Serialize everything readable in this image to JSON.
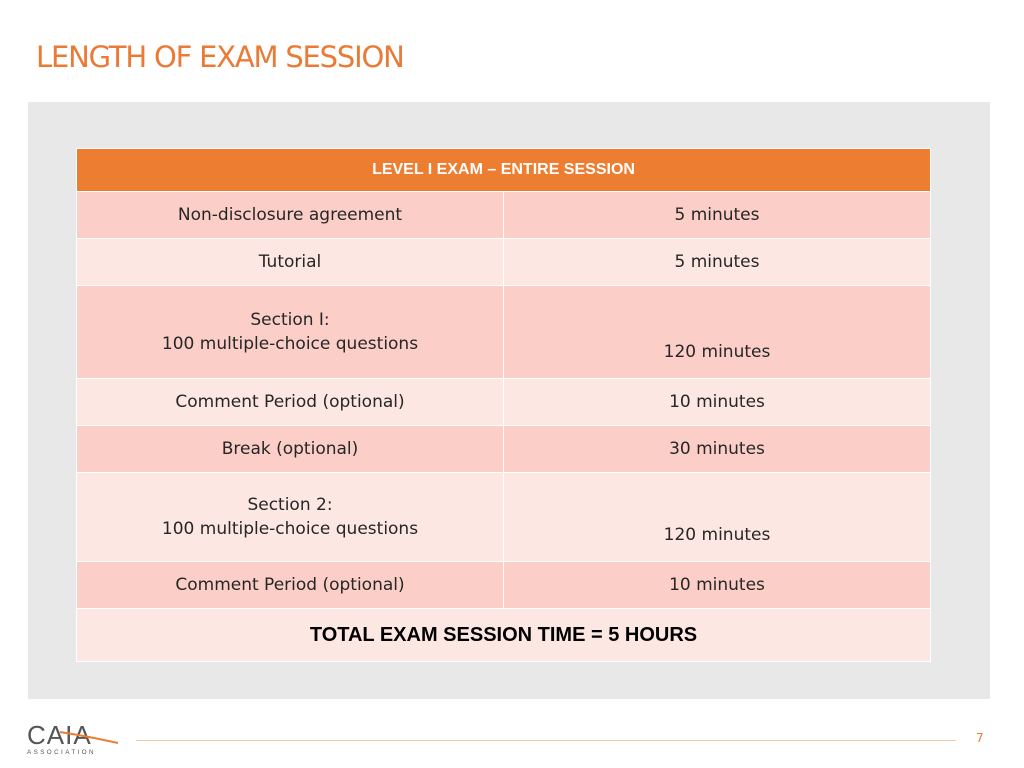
{
  "title": "LENGTH OF EXAM SESSION",
  "table": {
    "header": "LEVEL I EXAM – ENTIRE SESSION",
    "rows": [
      {
        "line1": "Non-disclosure agreement",
        "line2": "",
        "duration": "5 minutes",
        "shade": "dark"
      },
      {
        "line1": "Tutorial",
        "line2": "",
        "duration": "5 minutes",
        "shade": "light"
      },
      {
        "line1": "Section I:",
        "line2": "100 multiple-choice questions",
        "duration": "120 minutes",
        "shade": "dark"
      },
      {
        "line1": "Comment Period (optional)",
        "line2": "",
        "duration": "10 minutes",
        "shade": "light"
      },
      {
        "line1": "Break (optional)",
        "line2": "",
        "duration": "30 minutes",
        "shade": "dark"
      },
      {
        "line1": "Section 2:",
        "line2": "100 multiple-choice questions",
        "duration": "120 minutes",
        "shade": "light"
      },
      {
        "line1": "Comment Period (optional)",
        "line2": "",
        "duration": "10 minutes",
        "shade": "dark"
      }
    ],
    "total": "TOTAL EXAM SESSION TIME = 5 HOURS"
  },
  "footer": {
    "logo_main": "CAIA",
    "logo_sub": "ASSOCIATION",
    "page_number": "7"
  },
  "colors": {
    "accent": "#ed7d31",
    "row_dark": "#fbcfc7",
    "row_light": "#fde7e3",
    "panel": "#e8e8e8"
  }
}
